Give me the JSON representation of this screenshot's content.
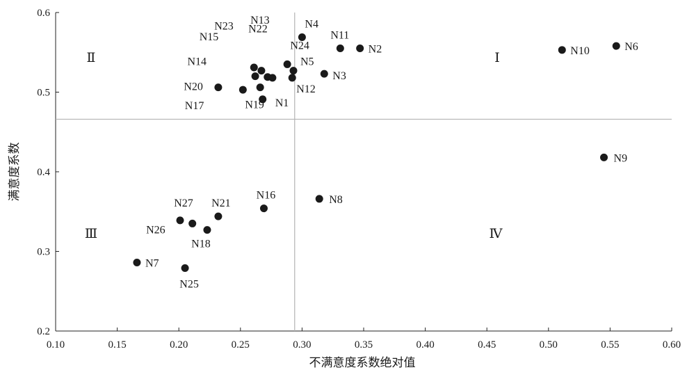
{
  "chart_data": {
    "type": "scatter",
    "title": "",
    "xlabel": "不满意度系数绝对值",
    "ylabel": "满意度系数",
    "xlim": [
      0.1,
      0.6
    ],
    "ylim": [
      0.2,
      0.6
    ],
    "xticks": [
      "0.10",
      "0.15",
      "0.20",
      "0.25",
      "0.30",
      "0.35",
      "0.40",
      "0.45",
      "0.50",
      "0.55",
      "0.60"
    ],
    "yticks": [
      "0.2",
      "0.3",
      "0.4",
      "0.5",
      "0.6"
    ],
    "grid": false,
    "reference_lines": {
      "x": 0.294,
      "y": 0.466
    },
    "quadrant_labels": [
      "Ⅰ",
      "Ⅱ",
      "Ⅲ",
      "Ⅳ"
    ],
    "points": [
      {
        "label": "N1",
        "x": 0.268,
        "y": 0.491
      },
      {
        "label": "N2",
        "x": 0.347,
        "y": 0.555
      },
      {
        "label": "N3",
        "x": 0.318,
        "y": 0.523
      },
      {
        "label": "N4",
        "x": 0.3,
        "y": 0.569
      },
      {
        "label": "N5",
        "x": 0.293,
        "y": 0.527
      },
      {
        "label": "N6",
        "x": 0.555,
        "y": 0.558
      },
      {
        "label": "N7",
        "x": 0.166,
        "y": 0.286
      },
      {
        "label": "N8",
        "x": 0.314,
        "y": 0.366
      },
      {
        "label": "N9",
        "x": 0.545,
        "y": 0.418
      },
      {
        "label": "N10",
        "x": 0.511,
        "y": 0.553
      },
      {
        "label": "N11",
        "x": 0.331,
        "y": 0.555
      },
      {
        "label": "N12",
        "x": 0.292,
        "y": 0.518
      },
      {
        "label": "N13",
        "x": 0.276,
        "y": 0.518
      },
      {
        "label": "N14",
        "x": 0.262,
        "y": 0.52
      },
      {
        "label": "N15",
        "x": 0.261,
        "y": 0.531
      },
      {
        "label": "N16",
        "x": 0.269,
        "y": 0.354
      },
      {
        "label": "N17",
        "x": 0.252,
        "y": 0.503
      },
      {
        "label": "N18",
        "x": 0.223,
        "y": 0.327
      },
      {
        "label": "N19",
        "x": 0.266,
        "y": 0.506
      },
      {
        "label": "N20",
        "x": 0.232,
        "y": 0.506
      },
      {
        "label": "N21",
        "x": 0.232,
        "y": 0.344
      },
      {
        "label": "N22",
        "x": 0.267,
        "y": 0.527
      },
      {
        "label": "N23",
        "x": 0.272,
        "y": 0.519
      },
      {
        "label": "N24",
        "x": 0.288,
        "y": 0.535
      },
      {
        "label": "N25",
        "x": 0.205,
        "y": 0.279
      },
      {
        "label": "N26",
        "x": 0.211,
        "y": 0.335
      },
      {
        "label": "N27",
        "x": 0.201,
        "y": 0.339
      }
    ]
  }
}
